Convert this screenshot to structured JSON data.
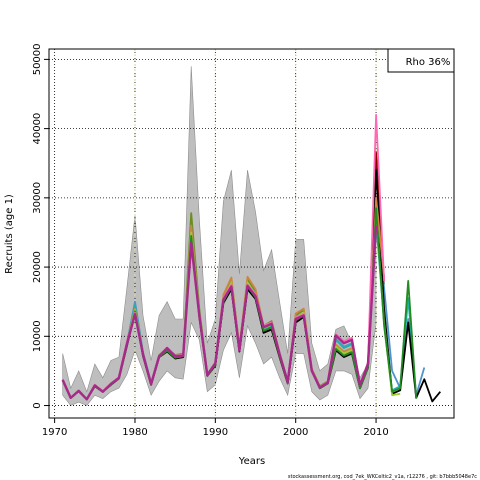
{
  "chart_data": {
    "type": "line",
    "xlabel": "Years",
    "ylabel": "Recruits (age 1)",
    "xlim": [
      1969.3,
      2019.7
    ],
    "ylim": [
      -1800,
      51500
    ],
    "grid": true,
    "legend_text": "Rho 36%",
    "legend_position": "top-right",
    "footer": "stockassessment.org, cod_7ek_WKCeltic2_v1a, r12276 , git: b7bbb5048e7c",
    "xticks": [
      1970,
      1980,
      1990,
      2000,
      2010
    ],
    "yticks": [
      0,
      10000,
      20000,
      30000,
      40000,
      50000
    ],
    "vlines": [
      1980,
      1990,
      2000,
      2010
    ],
    "band": {
      "x": [
        1971,
        1972,
        1973,
        1974,
        1975,
        1976,
        1977,
        1978,
        1979,
        1980,
        1981,
        1982,
        1983,
        1984,
        1985,
        1986,
        1987,
        1988,
        1989,
        1990,
        1991,
        1992,
        1993,
        1994,
        1995,
        1996,
        1997,
        1998,
        1999,
        2000,
        2001,
        2002,
        2003,
        2004,
        2005,
        2006,
        2007,
        2008,
        2009,
        2010
      ],
      "upper": [
        7500,
        2500,
        5000,
        2000,
        6000,
        4000,
        6500,
        7000,
        17000,
        27500,
        13000,
        6500,
        13000,
        15000,
        12500,
        12500,
        49000,
        27000,
        9000,
        12500,
        29500,
        34000,
        19000,
        34000,
        28000,
        19500,
        22500,
        15000,
        7500,
        24000,
        24000,
        9000,
        5000,
        6000,
        11000,
        11500,
        9000,
        4000,
        6000,
        27500
      ],
      "lower": [
        1500,
        0,
        500,
        0,
        1500,
        1000,
        2000,
        2500,
        4500,
        8000,
        5000,
        1500,
        3500,
        5000,
        4000,
        3800,
        12000,
        9500,
        2000,
        3000,
        8000,
        10500,
        4000,
        11500,
        9000,
        6000,
        7000,
        4000,
        1500,
        7500,
        7500,
        2000,
        800,
        1500,
        5000,
        5000,
        4500,
        1000,
        2500,
        12000
      ]
    },
    "series": [
      {
        "color": "#6b8e23",
        "x": [
          1971,
          1972,
          1973,
          1974,
          1975,
          1976,
          1977,
          1978,
          1979,
          1980,
          1981,
          1982,
          1983,
          1984,
          1985,
          1986,
          1987,
          1988,
          1989,
          1990,
          1991,
          1992,
          1993,
          1994,
          1995,
          1996,
          1997,
          1998,
          1999,
          2000,
          2001,
          2002,
          2003,
          2004,
          2005,
          2006,
          2007,
          2008,
          2009,
          2010,
          2011
        ],
        "values": [
          3700,
          1100,
          2200,
          900,
          3000,
          2000,
          3200,
          4000,
          9000,
          14800,
          7600,
          3200,
          7300,
          8300,
          7300,
          7500,
          27800,
          14000,
          4500,
          6200,
          15500,
          18200,
          8500,
          18200,
          16500,
          11500,
          12200,
          7600,
          3500,
          13000,
          13800,
          5300,
          2800,
          3500,
          10200,
          9000,
          9500,
          3000,
          6200,
          28500,
          17500
        ]
      },
      {
        "color": "#4f94cd",
        "x": [
          1971,
          1972,
          1973,
          1974,
          1975,
          1976,
          1977,
          1978,
          1979,
          1980,
          1981,
          1982,
          1983,
          1984,
          1985,
          1986,
          1987,
          1988,
          1989,
          1990,
          1991,
          1992,
          1993,
          1994,
          1995,
          1996,
          1997,
          1998,
          1999,
          2000,
          2001,
          2002,
          2003,
          2004,
          2005,
          2006,
          2007,
          2008,
          2009,
          2010,
          2011,
          2012,
          2013,
          2014,
          2015,
          2016
        ],
        "values": [
          3700,
          1100,
          2200,
          900,
          2900,
          2000,
          3100,
          4000,
          8900,
          15000,
          7700,
          3300,
          7200,
          8200,
          7200,
          7300,
          26000,
          13500,
          4500,
          6000,
          15000,
          17500,
          8200,
          17500,
          16000,
          11000,
          11500,
          7200,
          3300,
          12500,
          13200,
          5100,
          2600,
          3300,
          9600,
          8500,
          9000,
          2900,
          6000,
          27000,
          17000,
          5000,
          2500,
          12500,
          1500,
          5500
        ]
      },
      {
        "color": "#20b2aa",
        "x": [
          1971,
          1972,
          1973,
          1974,
          1975,
          1976,
          1977,
          1978,
          1979,
          1980,
          1981,
          1982,
          1983,
          1984,
          1985,
          1986,
          1987,
          1988,
          1989,
          1990,
          1991,
          1992,
          1993,
          1994,
          1995,
          1996,
          1997,
          1998,
          1999,
          2000,
          2001,
          2002,
          2003,
          2004,
          2005,
          2006,
          2007,
          2008,
          2009,
          2010,
          2011,
          2012,
          2013,
          2014,
          2015
        ],
        "values": [
          3700,
          1100,
          2200,
          900,
          2900,
          2000,
          3200,
          4000,
          9000,
          14500,
          7600,
          3200,
          7200,
          8100,
          7100,
          7200,
          25500,
          13200,
          4400,
          6000,
          15200,
          17600,
          8200,
          17600,
          16200,
          11000,
          11600,
          7200,
          3300,
          12600,
          13300,
          5100,
          2600,
          3300,
          9500,
          8300,
          8800,
          2800,
          5800,
          26500,
          12000,
          2200,
          2800,
          15500,
          1200
        ]
      },
      {
        "color": "#8b0000",
        "x": [
          1971,
          1972,
          1973,
          1974,
          1975,
          1976,
          1977,
          1978,
          1979,
          1980,
          1981,
          1982,
          1983,
          1984,
          1985,
          1986,
          1987,
          1988,
          1989,
          1990,
          1991,
          1992,
          1993,
          1994,
          1995,
          1996,
          1997,
          1998,
          1999,
          2000,
          2001,
          2002,
          2003,
          2004,
          2005,
          2006,
          2007,
          2008,
          2009,
          2010,
          2011
        ],
        "values": [
          3600,
          1100,
          2100,
          900,
          2800,
          2000,
          3000,
          3900,
          8700,
          13500,
          7200,
          3000,
          7000,
          7800,
          6800,
          7000,
          24500,
          13000,
          4300,
          5800,
          15000,
          17000,
          7800,
          17000,
          15500,
          10500,
          11000,
          7000,
          3200,
          12000,
          12800,
          5000,
          2500,
          3200,
          8000,
          7200,
          7800,
          2500,
          5500,
          36500,
          18000
        ]
      },
      {
        "color": "#000000",
        "x": [
          1971,
          1972,
          1973,
          1974,
          1975,
          1976,
          1977,
          1978,
          1979,
          1980,
          1981,
          1982,
          1983,
          1984,
          1985,
          1986,
          1987,
          1988,
          1989,
          1990,
          1991,
          1992,
          1993,
          1994,
          1995,
          1996,
          1997,
          1998,
          1999,
          2000,
          2001,
          2002,
          2003,
          2004,
          2005,
          2006,
          2007,
          2008,
          2009,
          2010,
          2011,
          2012,
          2013,
          2014,
          2015,
          2016,
          2017,
          2018
        ],
        "values": [
          3600,
          1100,
          2100,
          900,
          2800,
          2000,
          3000,
          3900,
          8600,
          13500,
          7200,
          3000,
          7000,
          7800,
          6800,
          7000,
          24000,
          12800,
          4300,
          5800,
          14800,
          16800,
          7800,
          16800,
          15400,
          10500,
          11000,
          7000,
          3200,
          12000,
          12800,
          5000,
          2500,
          3200,
          8000,
          7000,
          7500,
          2500,
          5500,
          34000,
          14000,
          1700,
          2200,
          12000,
          1100,
          3800,
          600,
          2000
        ]
      },
      {
        "color": "#cd853f",
        "x": [
          1971,
          1972,
          1973,
          1974,
          1975,
          1976,
          1977,
          1978,
          1979,
          1980,
          1981,
          1982,
          1983,
          1984,
          1985,
          1986,
          1987,
          1988,
          1989,
          1990,
          1991,
          1992,
          1993,
          1994,
          1995,
          1996,
          1997,
          1998,
          1999,
          2000,
          2001,
          2002,
          2003,
          2004,
          2005,
          2006,
          2007,
          2008,
          2009,
          2010,
          2011
        ],
        "values": [
          3700,
          1100,
          2200,
          900,
          3000,
          2000,
          3200,
          4000,
          9000,
          14000,
          7500,
          3200,
          7200,
          8200,
          7100,
          7400,
          26000,
          13500,
          4500,
          6200,
          16000,
          18500,
          8300,
          18600,
          16800,
          11500,
          12000,
          7500,
          3400,
          13300,
          14000,
          5300,
          2700,
          3400,
          8800,
          7800,
          8300,
          2700,
          6000,
          30000,
          18500
        ]
      },
      {
        "color": "#9acd32",
        "x": [
          1971,
          1972,
          1973,
          1974,
          1975,
          1976,
          1977,
          1978,
          1979,
          1980,
          1981,
          1982,
          1983,
          1984,
          1985,
          1986,
          1987,
          1988,
          1989,
          1990,
          1991,
          1992,
          1993,
          1994,
          1995,
          1996,
          1997,
          1998,
          1999,
          2000,
          2001,
          2002,
          2003,
          2004,
          2005,
          2006,
          2007,
          2008,
          2009,
          2010,
          2011,
          2012,
          2013
        ],
        "values": [
          3600,
          1100,
          2100,
          900,
          2900,
          2000,
          3100,
          3900,
          8800,
          13800,
          7400,
          3100,
          7100,
          8000,
          7000,
          7200,
          25000,
          13200,
          4400,
          6000,
          15300,
          17800,
          8100,
          17800,
          16000,
          11200,
          11700,
          7300,
          3300,
          12700,
          13400,
          5100,
          2600,
          3300,
          8500,
          7500,
          8000,
          2600,
          5700,
          28000,
          12000,
          1500,
          1700
        ]
      },
      {
        "color": "#228b22",
        "x": [
          1971,
          1972,
          1973,
          1974,
          1975,
          1976,
          1977,
          1978,
          1979,
          1980,
          1981,
          1982,
          1983,
          1984,
          1985,
          1986,
          1987,
          1988,
          1989,
          1990,
          1991,
          1992,
          1993,
          1994,
          1995,
          1996,
          1997,
          1998,
          1999,
          2000,
          2001,
          2002,
          2003,
          2004,
          2005,
          2006,
          2007,
          2008,
          2009,
          2010,
          2011,
          2012,
          2013,
          2014,
          2015
        ],
        "values": [
          3600,
          1100,
          2100,
          900,
          2800,
          2000,
          3000,
          3900,
          8700,
          13600,
          7300,
          3000,
          7000,
          7900,
          6900,
          7100,
          24500,
          13000,
          4300,
          5900,
          15000,
          17200,
          7900,
          17200,
          15600,
          10800,
          11300,
          7100,
          3200,
          12300,
          13000,
          5000,
          2500,
          3200,
          8200,
          7200,
          7700,
          2500,
          5500,
          28500,
          11500,
          2000,
          2500,
          18000,
          1000
        ]
      },
      {
        "color": "#ff69b4",
        "x": [
          1971,
          1972,
          1973,
          1974,
          1975,
          1976,
          1977,
          1978,
          1979,
          1980,
          1981,
          1982,
          1983,
          1984,
          1985,
          1986,
          1987,
          1988,
          1989,
          1990,
          1991,
          1992,
          1993,
          1994,
          1995,
          1996,
          1997,
          1998,
          1999,
          2000,
          2001,
          2002,
          2003,
          2004,
          2005,
          2006,
          2007,
          2008,
          2009,
          2010,
          2011
        ],
        "values": [
          3800,
          1100,
          2200,
          900,
          3000,
          2100,
          3200,
          4100,
          9200,
          13400,
          7500,
          3200,
          7200,
          8400,
          7200,
          7300,
          23000,
          13000,
          4500,
          6200,
          15500,
          17500,
          8000,
          17500,
          16000,
          11500,
          12000,
          7500,
          3500,
          12700,
          13200,
          5100,
          2700,
          3400,
          10300,
          9300,
          9800,
          3000,
          6200,
          42000,
          18000
        ]
      },
      {
        "color": "#a52a8a",
        "x": [
          1971,
          1972,
          1973,
          1974,
          1975,
          1976,
          1977,
          1978,
          1979,
          1980,
          1981,
          1982,
          1983,
          1984,
          1985,
          1986,
          1987,
          1988,
          1989,
          1990,
          1991,
          1992,
          1993,
          1994,
          1995,
          1996,
          1997,
          1998,
          1999,
          2000,
          2001,
          2002,
          2003,
          2004,
          2005,
          2006,
          2007,
          2008,
          2009,
          2010
        ],
        "values": [
          3700,
          1100,
          2100,
          900,
          2900,
          2000,
          3100,
          4000,
          8900,
          13200,
          7400,
          3100,
          7100,
          8300,
          7100,
          7200,
          23500,
          13000,
          4400,
          6100,
          15300,
          17200,
          8000,
          17300,
          15800,
          11300,
          11800,
          7400,
          3400,
          12500,
          13000,
          5000,
          2600,
          3300,
          10100,
          9000,
          9500,
          2900,
          6000,
          26000
        ]
      }
    ]
  }
}
